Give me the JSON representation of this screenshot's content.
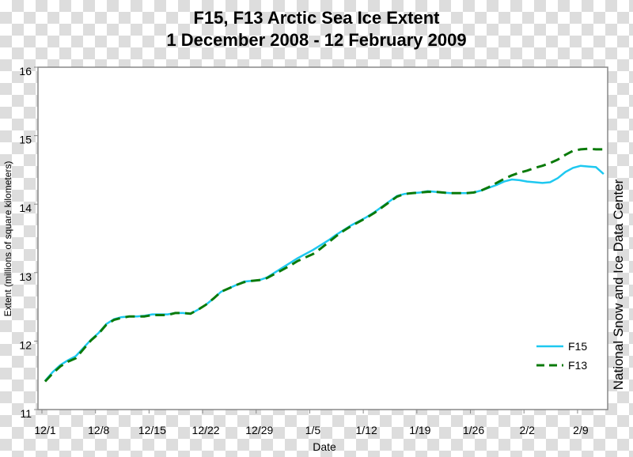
{
  "chart_data": {
    "type": "line",
    "title": "F15, F13 Arctic Sea Ice Extent",
    "subtitle": "1 December 2008 - 12 February 2009",
    "xlabel": "Date",
    "ylabel": "Extent (millions of square kilometers)",
    "ylim": [
      11,
      16
    ],
    "yticks": [
      11,
      12,
      13,
      14,
      15,
      16
    ],
    "xticks": [
      {
        "day": 0,
        "label": "12/1"
      },
      {
        "day": 7,
        "label": "12/8"
      },
      {
        "day": 14,
        "label": "12/15"
      },
      {
        "day": 21,
        "label": "12/22"
      },
      {
        "day": 28,
        "label": "12/29"
      },
      {
        "day": 35,
        "label": "1/5"
      },
      {
        "day": 42,
        "label": "1/12"
      },
      {
        "day": 49,
        "label": "1/19"
      },
      {
        "day": 56,
        "label": "1/26"
      },
      {
        "day": 63,
        "label": "2/2"
      },
      {
        "day": 70,
        "label": "2/9"
      }
    ],
    "xlim": [
      -0.5,
      73.5
    ],
    "x_unit": "days since 1 December 2008",
    "legend_position": "bottom-right",
    "series": [
      {
        "name": "F15",
        "color": "#1ec8f0",
        "dash": "solid",
        "values": [
          11.42,
          11.55,
          11.65,
          11.72,
          11.78,
          11.9,
          12.02,
          12.12,
          12.25,
          12.32,
          12.35,
          12.36,
          12.36,
          12.37,
          12.39,
          12.39,
          12.39,
          12.41,
          12.41,
          12.4,
          12.46,
          12.53,
          12.62,
          12.72,
          12.77,
          12.82,
          12.87,
          12.88,
          12.89,
          12.93,
          13.0,
          13.07,
          13.14,
          13.21,
          13.27,
          13.33,
          13.4,
          13.47,
          13.55,
          13.62,
          13.69,
          13.75,
          13.81,
          13.88,
          13.96,
          14.04,
          14.12,
          14.15,
          14.16,
          14.17,
          14.19,
          14.18,
          14.17,
          14.16,
          14.16,
          14.16,
          14.17,
          14.2,
          14.24,
          14.28,
          14.33,
          14.36,
          14.35,
          14.33,
          14.32,
          14.31,
          14.32,
          14.38,
          14.47,
          14.53,
          14.56,
          14.55,
          14.54,
          14.44
        ]
      },
      {
        "name": "F13",
        "color": "#0a7a0a",
        "dash": "dashed",
        "values": [
          11.41,
          11.53,
          11.63,
          11.7,
          11.75,
          11.88,
          12.01,
          12.11,
          12.24,
          12.31,
          12.34,
          12.36,
          12.36,
          12.36,
          12.38,
          12.38,
          12.38,
          12.41,
          12.41,
          12.4,
          12.46,
          12.53,
          12.62,
          12.72,
          12.77,
          12.82,
          12.86,
          12.88,
          12.89,
          12.92,
          12.98,
          13.04,
          13.1,
          13.17,
          13.22,
          13.27,
          13.35,
          13.44,
          13.53,
          13.61,
          13.68,
          13.74,
          13.8,
          13.87,
          13.95,
          14.03,
          14.11,
          14.15,
          14.16,
          14.17,
          14.18,
          14.18,
          14.17,
          14.16,
          14.16,
          14.16,
          14.17,
          14.2,
          14.25,
          14.31,
          14.37,
          14.42,
          14.46,
          14.49,
          14.53,
          14.56,
          14.6,
          14.65,
          14.72,
          14.78,
          14.8,
          14.81,
          14.8,
          14.8
        ]
      }
    ]
  },
  "credit": "National Snow and Ice Data Center"
}
